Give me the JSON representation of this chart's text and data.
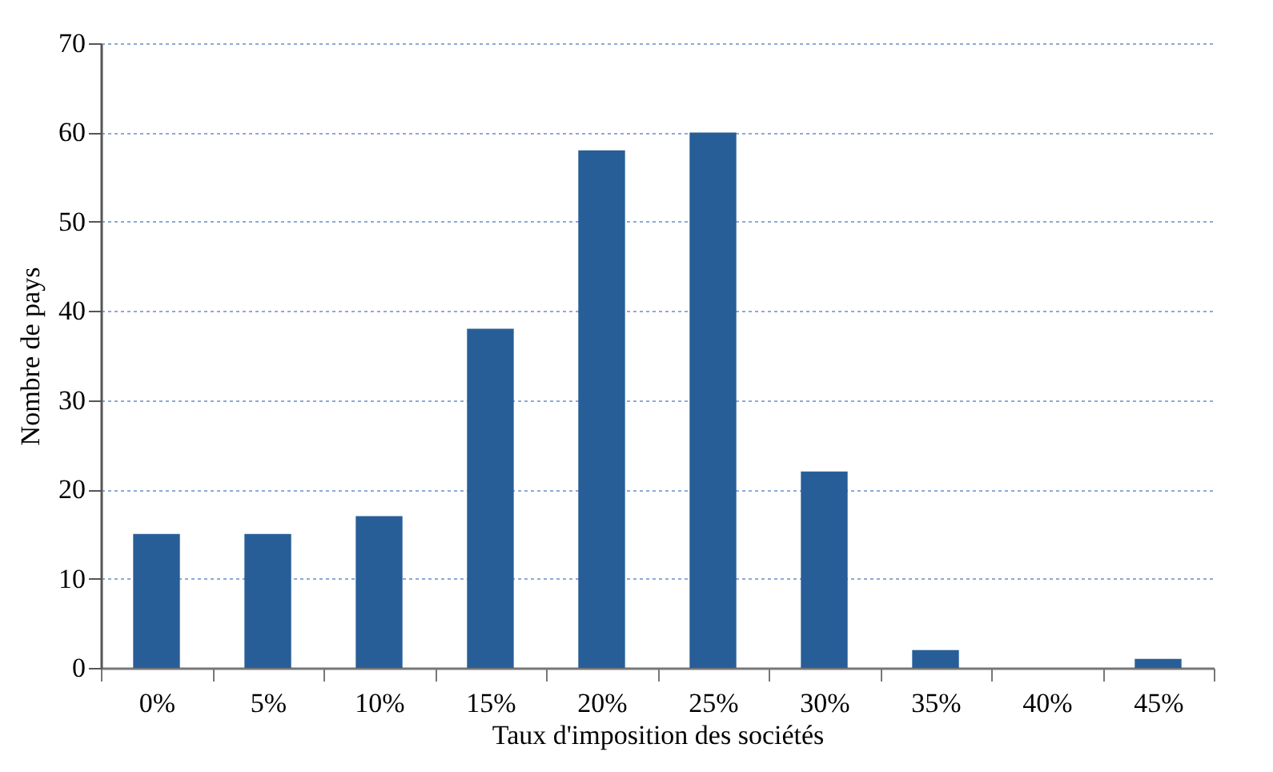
{
  "chart_data": {
    "type": "bar",
    "xlabel": "Taux d'imposition des sociétés",
    "ylabel": "Nombre de pays",
    "categories": [
      "0%",
      "5%",
      "10%",
      "15%",
      "20%",
      "25%",
      "30%",
      "35%",
      "40%",
      "45%"
    ],
    "values": [
      15,
      15,
      17,
      38,
      58,
      60,
      22,
      2,
      0,
      1
    ],
    "color": "#285e98",
    "ylim": [
      0,
      70
    ],
    "yticks": [
      0,
      10,
      20,
      30,
      40,
      50,
      60,
      70
    ],
    "grid": "y"
  }
}
